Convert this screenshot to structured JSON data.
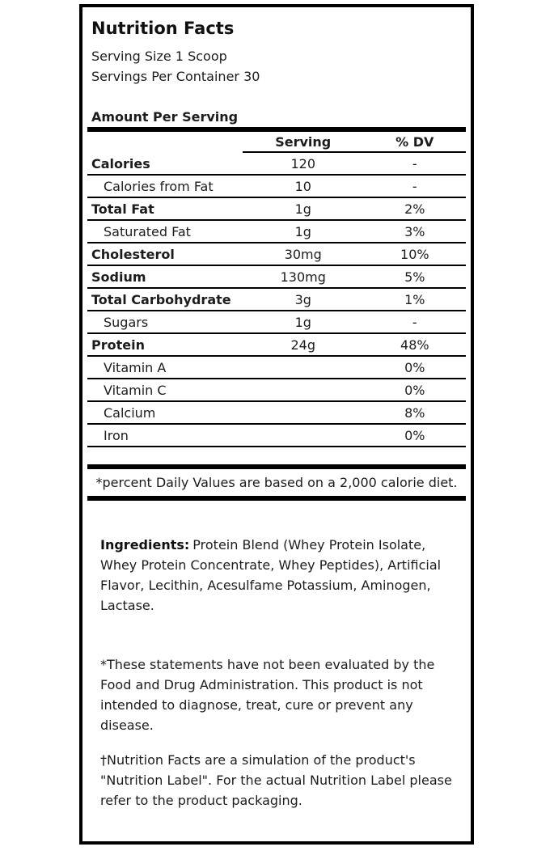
{
  "label": {
    "title": "Nutrition Facts",
    "serving_size": "Serving Size 1 Scoop",
    "servings_per_container": "Servings Per Container 30",
    "amount_per_serving": "Amount Per Serving",
    "table": {
      "columns": {
        "serving": "Serving",
        "dv": "% DV"
      },
      "rows": [
        {
          "name": "Calories",
          "serving": "120",
          "dv": "-",
          "bold": true,
          "indent": false
        },
        {
          "name": "Calories from Fat",
          "serving": "10",
          "dv": "-",
          "bold": false,
          "indent": true
        },
        {
          "name": "Total Fat",
          "serving": "1g",
          "dv": "2%",
          "bold": true,
          "indent": false
        },
        {
          "name": "Saturated Fat",
          "serving": "1g",
          "dv": "3%",
          "bold": false,
          "indent": true
        },
        {
          "name": "Cholesterol",
          "serving": "30mg",
          "dv": "10%",
          "bold": true,
          "indent": false
        },
        {
          "name": "Sodium",
          "serving": "130mg",
          "dv": "5%",
          "bold": true,
          "indent": false
        },
        {
          "name": "Total Carbohydrate",
          "serving": "3g",
          "dv": "1%",
          "bold": true,
          "indent": false
        },
        {
          "name": "Sugars",
          "serving": "1g",
          "dv": "-",
          "bold": false,
          "indent": true
        },
        {
          "name": "Protein",
          "serving": "24g",
          "dv": "48%",
          "bold": true,
          "indent": false
        },
        {
          "name": "Vitamin A",
          "serving": "",
          "dv": "0%",
          "bold": false,
          "indent": true
        },
        {
          "name": "Vitamin C",
          "serving": "",
          "dv": "0%",
          "bold": false,
          "indent": true
        },
        {
          "name": "Calcium",
          "serving": "",
          "dv": "8%",
          "bold": false,
          "indent": true
        },
        {
          "name": "Iron",
          "serving": "",
          "dv": "0%",
          "bold": false,
          "indent": true
        }
      ]
    },
    "footnote": "*percent Daily Values are based on a 2,000 calorie diet.",
    "ingredients_label": "Ingredients:",
    "ingredients_text": "Protein Blend (Whey Protein Isolate, Whey Protein Concentrate, Whey Peptides), Artificial Flavor, Lecithin, Acesulfame Potassium, Aminogen, Lactase.",
    "fda_statement": "*These statements have not been evaluated by the Food and Drug Administration. This product is not intended to diagnose, treat, cure or prevent any disease.",
    "simulation_statement": "†Nutrition Facts are a simulation of the product's \"Nutrition Label\". For the actual Nutrition Label please refer to the product packaging.",
    "colors": {
      "text": "#1c1c1c",
      "rule": "#000000",
      "background": "#ffffff"
    }
  }
}
